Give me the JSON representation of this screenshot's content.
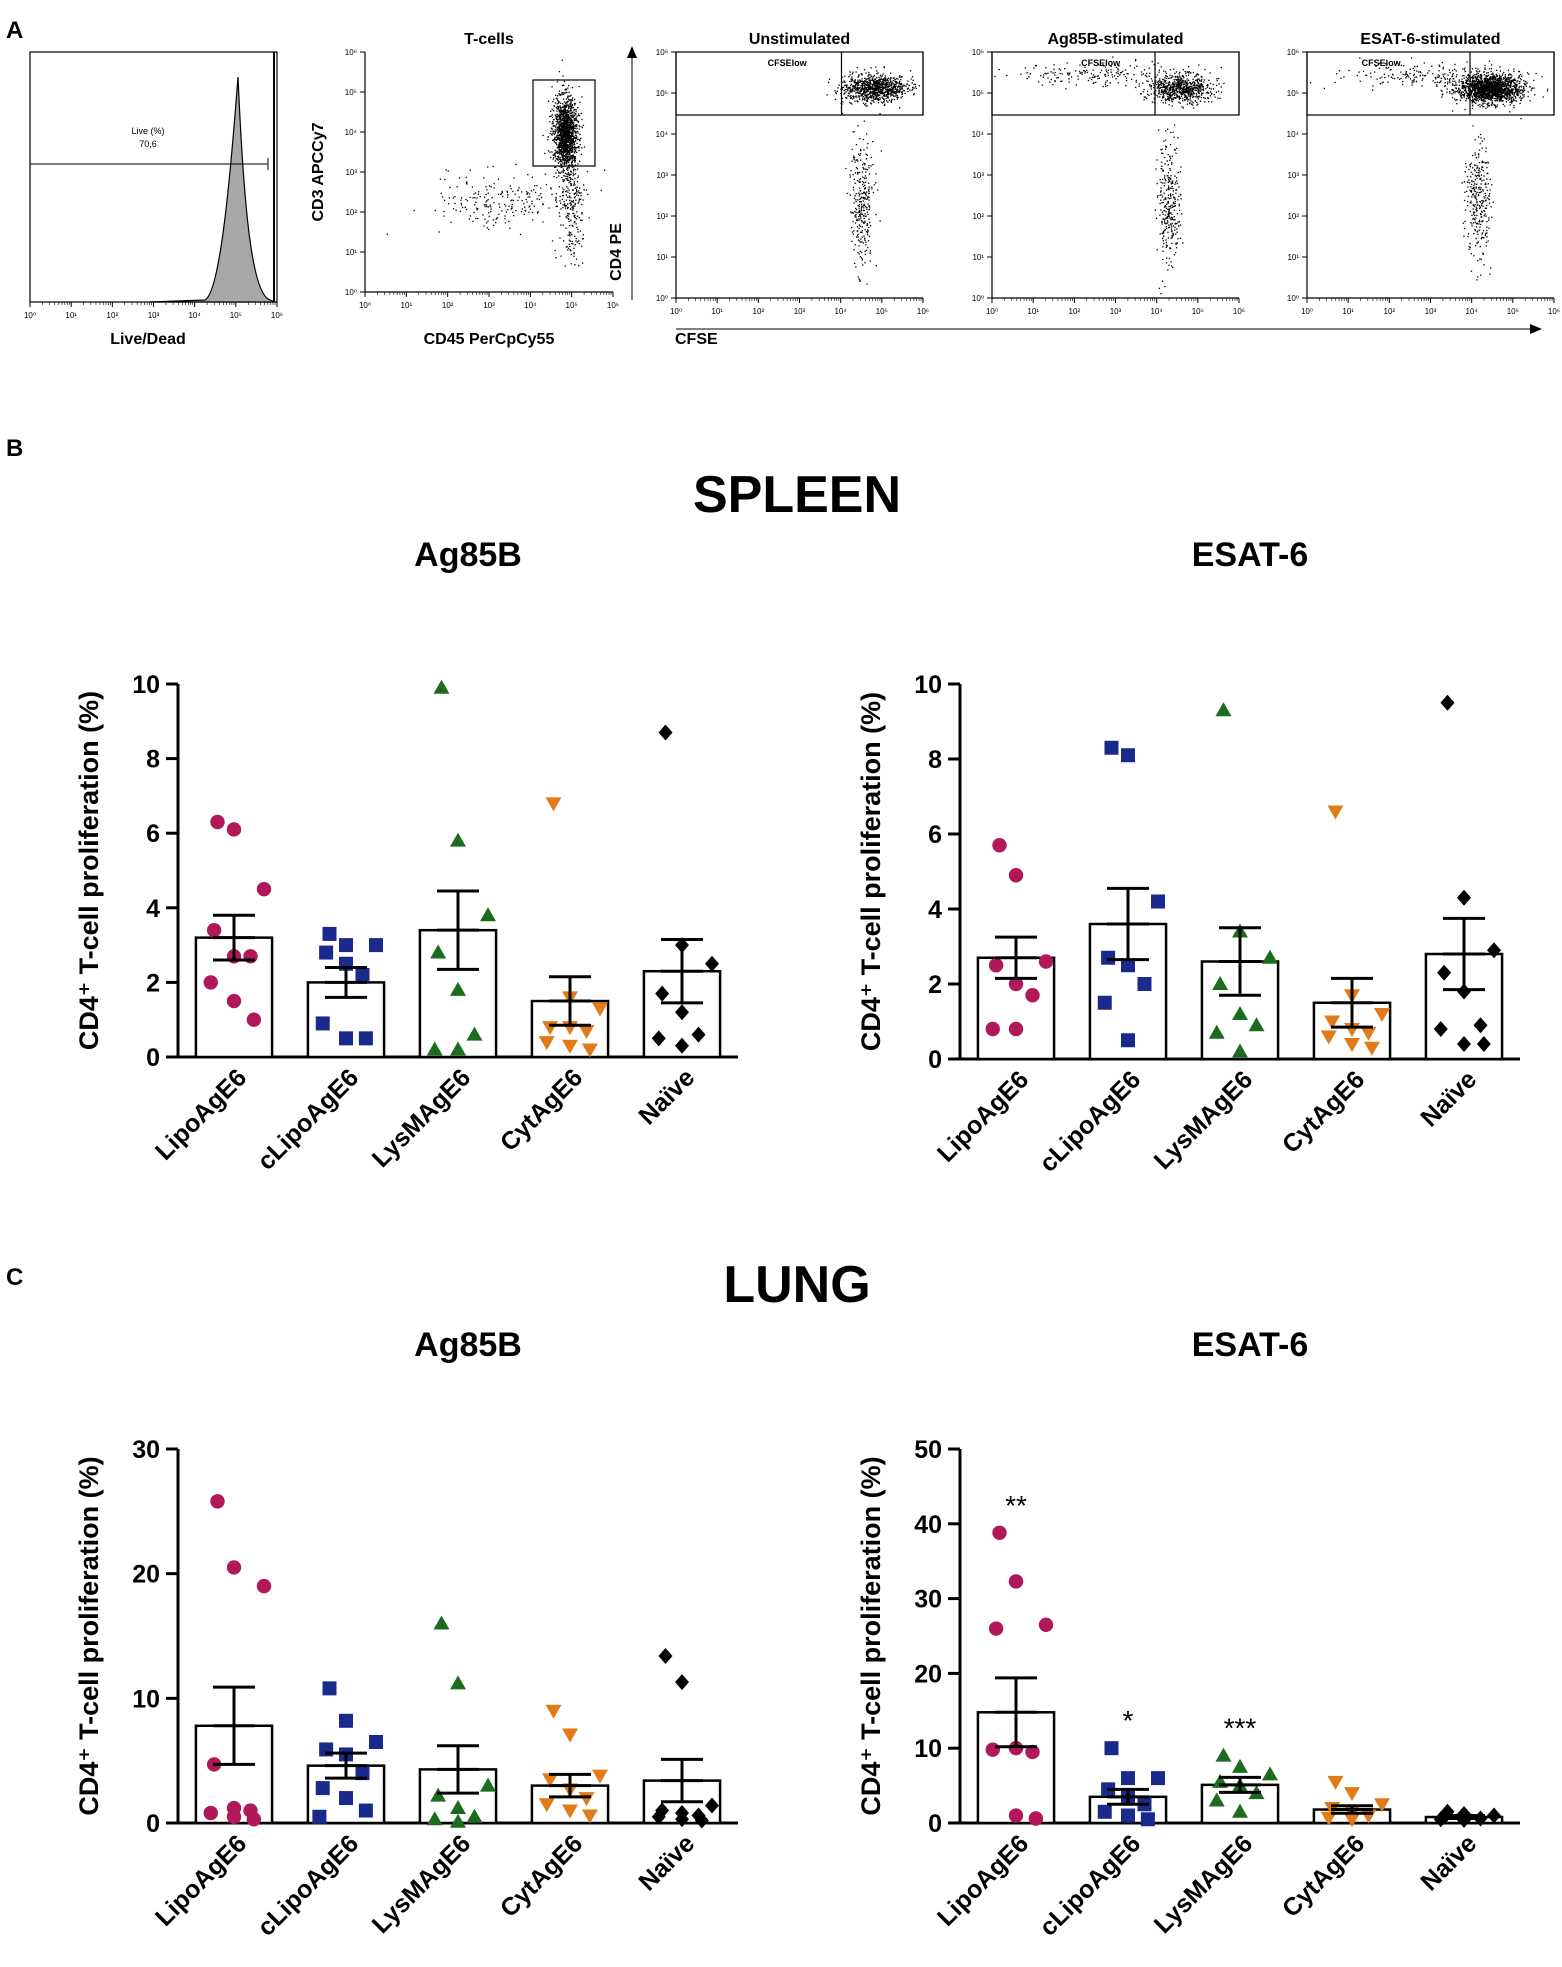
{
  "panel_labels": {
    "a": "A",
    "b": "B",
    "c": "C"
  },
  "section_titles": {
    "spleen": "SPLEEN",
    "lung": "LUNG"
  },
  "colors": {
    "LipoAgE6": "#b0185a",
    "cLipoAgE6": "#1a2a8c",
    "LysMAgE6": "#1d6b1d",
    "CytAgE6": "#e07b18",
    "Naive": "#000000"
  },
  "markers": {
    "LipoAgE6": "circle",
    "cLipoAgE6": "square",
    "LysMAgE6": "triangle-up",
    "CytAgE6": "triangle-down",
    "Naive": "diamond"
  },
  "flow_panel": {
    "histogram": {
      "xlabel": "Live/Dead",
      "gate_label": "Live (%)",
      "gate_value": "70,6",
      "ticks": [
        "10⁰",
        "10¹",
        "10²",
        "10³",
        "10⁴",
        "10⁵",
        "10⁶"
      ]
    },
    "tcells": {
      "title": "T-cells",
      "xlabel": "CD45 PerCpCy55",
      "ylabel": "CD3 APCCy7",
      "ticks": [
        "10⁰",
        "10¹",
        "10²",
        "10³",
        "10⁴",
        "10⁵",
        "10⁶"
      ]
    },
    "stim_plots": [
      {
        "title": "Unstimulated",
        "gate": "CFSElow"
      },
      {
        "title": "Ag85B-stimulated",
        "gate": "CFSElow"
      },
      {
        "title": "ESAT-6-stimulated",
        "gate": "CFSElow"
      }
    ],
    "stim_xlabel": "CFSE",
    "stim_ylabel": "CD4 PE",
    "ticks": [
      "10⁰",
      "10¹",
      "10²",
      "10³",
      "10⁴",
      "10⁵",
      "10⁶"
    ]
  },
  "chart_data": [
    {
      "type": "bar",
      "id": "spleen-ag85b",
      "section": "SPLEEN",
      "title": "Ag85B",
      "ylabel": "CD4⁺ T-cell proliferation (%)",
      "ylim": [
        0,
        10
      ],
      "yticks": [
        0,
        2,
        4,
        6,
        8,
        10
      ],
      "categories": [
        "LipoAgE6",
        "cLipoAgE6",
        "LysMAgE6",
        "CytAgE6",
        "Naïve"
      ],
      "means": [
        3.2,
        2.0,
        3.4,
        1.5,
        2.3
      ],
      "sem": [
        0.6,
        0.4,
        1.05,
        0.65,
        0.85
      ],
      "points": [
        [
          6.3,
          6.1,
          4.5,
          3.4,
          2.7,
          2.7,
          2.0,
          1.5,
          1.0
        ],
        [
          3.3,
          3.0,
          3.0,
          2.8,
          2.5,
          2.2,
          0.9,
          0.5,
          0.5
        ],
        [
          9.9,
          5.8,
          3.8,
          2.8,
          1.8,
          0.6,
          0.2,
          0.2
        ],
        [
          6.8,
          1.6,
          1.3,
          0.8,
          0.8,
          0.7,
          0.4,
          0.3,
          0.2
        ],
        [
          8.7,
          3.0,
          2.5,
          1.7,
          1.2,
          0.6,
          0.5,
          0.3
        ]
      ],
      "annotations": [
        "",
        "",
        "",
        "",
        ""
      ]
    },
    {
      "type": "bar",
      "id": "spleen-esat6",
      "section": "SPLEEN",
      "title": "ESAT-6",
      "ylabel": "CD4⁺ T-cell proliferation (%)",
      "ylim": [
        0,
        10
      ],
      "yticks": [
        0,
        2,
        4,
        6,
        8,
        10
      ],
      "categories": [
        "LipoAgE6",
        "cLipoAgE6",
        "LysMAgE6",
        "CytAgE6",
        "Naïve"
      ],
      "means": [
        2.7,
        3.6,
        2.6,
        1.5,
        2.8
      ],
      "sem": [
        0.55,
        0.95,
        0.9,
        0.65,
        0.95
      ],
      "points": [
        [
          5.7,
          4.9,
          2.6,
          2.5,
          2.0,
          1.7,
          0.8,
          0.8
        ],
        [
          8.3,
          8.1,
          4.2,
          2.7,
          2.5,
          2.0,
          1.5,
          0.5
        ],
        [
          9.3,
          3.4,
          2.7,
          2.0,
          1.2,
          0.9,
          0.7,
          0.2
        ],
        [
          6.6,
          1.7,
          1.2,
          1.0,
          0.8,
          0.7,
          0.6,
          0.4,
          0.3
        ],
        [
          9.5,
          4.3,
          2.9,
          2.3,
          1.8,
          0.9,
          0.8,
          0.4,
          0.4
        ]
      ],
      "annotations": [
        "",
        "",
        "",
        "",
        ""
      ]
    },
    {
      "type": "bar",
      "id": "lung-ag85b",
      "section": "LUNG",
      "title": "Ag85B",
      "ylabel": "CD4⁺ T-cell proliferation (%)",
      "ylim": [
        0,
        30
      ],
      "yticks": [
        0,
        10,
        20,
        30
      ],
      "categories": [
        "LipoAgE6",
        "cLipoAgE6",
        "LysMAgE6",
        "CytAgE6",
        "Naïve"
      ],
      "means": [
        7.8,
        4.6,
        4.3,
        3.0,
        3.4
      ],
      "sem": [
        3.1,
        1.0,
        1.9,
        0.9,
        1.7
      ],
      "points": [
        [
          25.8,
          20.5,
          19.0,
          4.7,
          1.2,
          1.0,
          0.8,
          0.5,
          0.3
        ],
        [
          10.8,
          8.2,
          6.5,
          5.9,
          5.5,
          4.0,
          2.8,
          2.0,
          1.0,
          0.5
        ],
        [
          16.0,
          11.2,
          3.0,
          2.2,
          1.2,
          0.5,
          0.3,
          0.1
        ],
        [
          9.0,
          7.1,
          3.8,
          3.5,
          2.7,
          2.0,
          1.5,
          1.0,
          0.6
        ],
        [
          13.4,
          11.3,
          1.4,
          1.0,
          0.8,
          0.6,
          0.5,
          0.3,
          0.2
        ]
      ],
      "annotations": [
        "",
        "",
        "",
        "",
        ""
      ]
    },
    {
      "type": "bar",
      "id": "lung-esat6",
      "section": "LUNG",
      "title": "ESAT-6",
      "ylabel": "CD4⁺ T-cell proliferation (%)",
      "ylim": [
        0,
        50
      ],
      "yticks": [
        0,
        10,
        20,
        30,
        40,
        50
      ],
      "categories": [
        "LipoAgE6",
        "cLipoAgE6",
        "LysMAgE6",
        "CytAgE6",
        "Naïve"
      ],
      "means": [
        14.8,
        3.5,
        5.1,
        1.8,
        0.8
      ],
      "sem": [
        4.6,
        1.0,
        1.0,
        0.5,
        0.2
      ],
      "points": [
        [
          38.8,
          32.3,
          26.5,
          26.0,
          10.0,
          9.5,
          9.8,
          1.0,
          0.6
        ],
        [
          10.0,
          6.0,
          6.0,
          4.5,
          3.5,
          2.5,
          1.5,
          1.0,
          0.5
        ],
        [
          9.0,
          7.5,
          6.5,
          5.5,
          5.0,
          4.0,
          3.0,
          1.5
        ],
        [
          5.5,
          4.0,
          2.5,
          2.0,
          1.5,
          1.0,
          0.7,
          0.5
        ],
        [
          1.5,
          1.2,
          1.0,
          0.8,
          0.7,
          0.6,
          0.5,
          0.4
        ]
      ],
      "annotations": [
        "**",
        "*",
        "***",
        "",
        ""
      ]
    }
  ]
}
